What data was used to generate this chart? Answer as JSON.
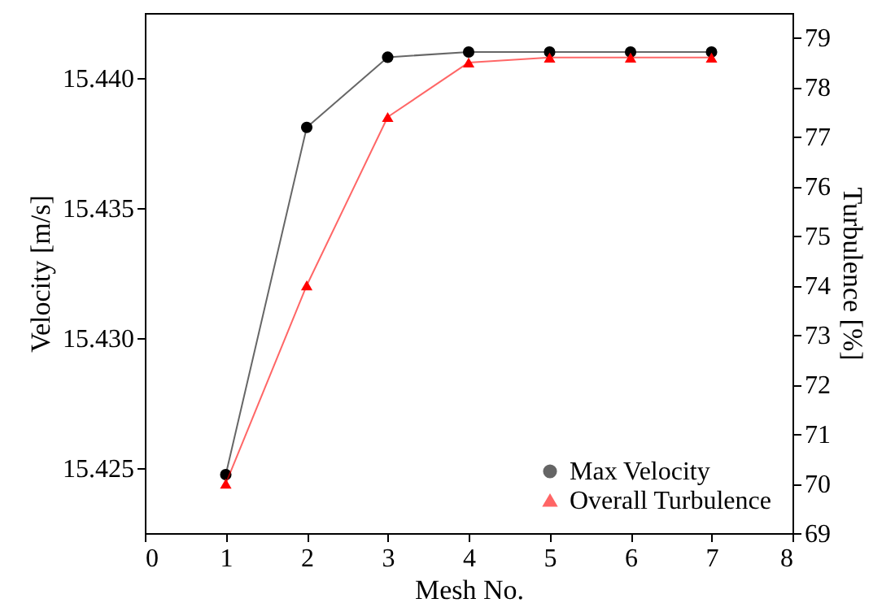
{
  "chart_data": {
    "type": "line",
    "xlabel": "Mesh No.",
    "ylabel": "Velocity [m/s]",
    "y2label": "Turbulence [%]",
    "x": [
      1,
      2,
      3,
      4,
      5,
      6,
      7
    ],
    "series": [
      {
        "name": "Max Velocity",
        "color": "#000000",
        "marker": "circle",
        "values": [
          15.42475,
          15.4381,
          15.4408,
          15.441,
          15.441,
          15.441,
          15.441
        ]
      },
      {
        "name": "Overall Turbulence",
        "color": "#ff0000",
        "marker": "triangle",
        "axis": "y2",
        "values": [
          70.0,
          74.0,
          77.4,
          78.5,
          78.6,
          78.6,
          78.6
        ]
      }
    ],
    "xlim": [
      0,
      8
    ],
    "xticks": [
      0,
      1,
      2,
      3,
      4,
      5,
      6,
      7,
      8
    ],
    "ylim": [
      15.4225,
      15.4425
    ],
    "yticks": [
      15.425,
      {
        "value": 15.43,
        "label": "15.430"
      },
      15.435,
      {
        "value": 15.44,
        "label": "15.440"
      }
    ],
    "y2lim": [
      69,
      79.5
    ],
    "y2ticks": [
      69,
      70,
      71,
      72,
      73,
      74,
      75,
      76,
      77,
      78,
      79
    ],
    "grid": false,
    "legend": "bottom right"
  }
}
